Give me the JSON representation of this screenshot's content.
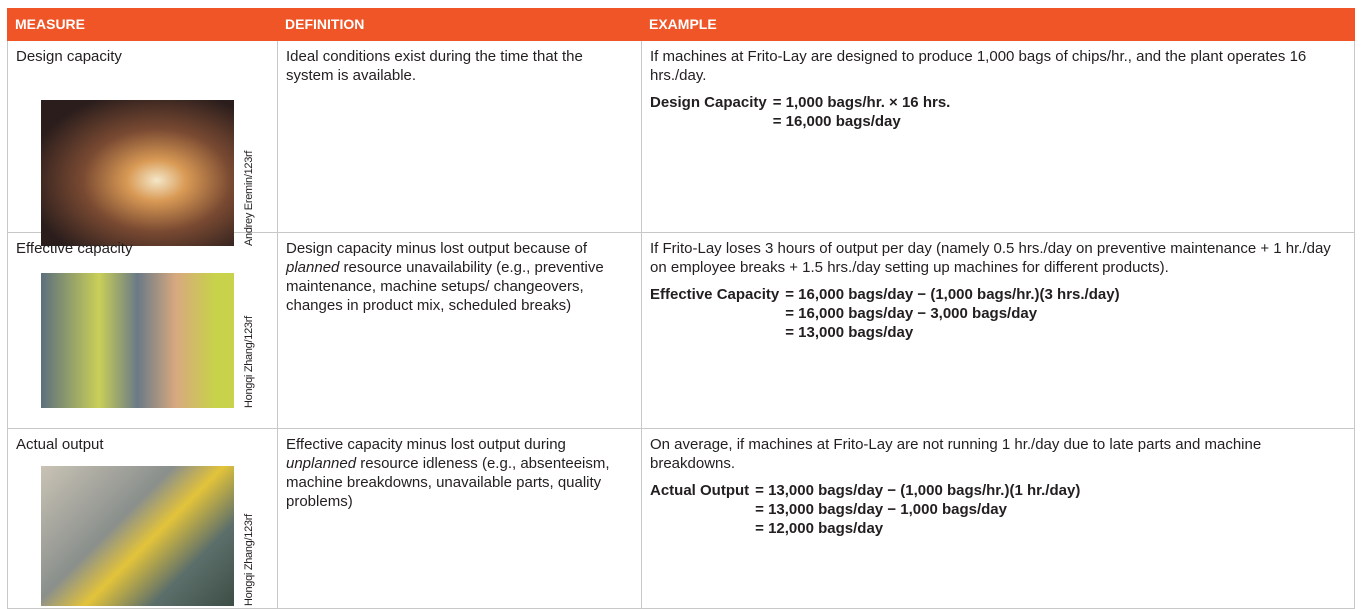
{
  "table": {
    "header": [
      "MEASURE",
      "DEFINITION",
      "EXAMPLE"
    ],
    "rows": [
      {
        "measure": "Design capacity",
        "credit": "Andrey Eremin/123rf",
        "definition": [
          "Ideal conditions exist during the time that the system is available."
        ],
        "example": "If machines at Frito-Lay are designed to produce 1,000 bags of chips/hr., and the plant operates 16 hrs./day.",
        "equation": {
          "label": "Design Capacity",
          "lines": [
            "= 1,000 bags/hr. × 16 hrs.",
            "= 16,000 bags/day"
          ]
        }
      },
      {
        "measure": "Effective capacity",
        "credit": "Hongqi Zhang/123rf",
        "definition": [
          "Design capacity minus lost output because of ",
          "planned",
          " resource unavailability (e.g., preventive maintenance, machine setups/ changeovers, changes in product mix, scheduled breaks)"
        ],
        "example": "If Frito-Lay loses 3 hours of output per day (namely 0.5 hrs./day on preventive maintenance + 1 hr./day on employee breaks + 1.5 hrs./day setting up machines for different products).",
        "equation": {
          "label": "Effective Capacity",
          "lines": [
            "= 16,000 bags/day − (1,000 bags/hr.)(3 hrs./day)",
            "= 16,000 bags/day − 3,000 bags/day",
            "= 13,000 bags/day"
          ]
        }
      },
      {
        "measure": "Actual output",
        "credit": "Hongqi Zhang/123rf",
        "definition": [
          "Effective capacity minus lost output during ",
          "unplanned",
          " resource idleness (e.g., absenteeism, machine breakdowns, unavailable parts, quality problems)"
        ],
        "example": "On average, if machines at Frito-Lay are not running 1 hr./day due to late parts and machine breakdowns.",
        "equation": {
          "label": "Actual Output",
          "lines": [
            "= 13,000 bags/day − (1,000 bags/hr.)(1 hr./day)",
            "= 13,000 bags/day − 1,000 bags/day",
            "= 12,000 bags/day"
          ]
        }
      }
    ]
  }
}
